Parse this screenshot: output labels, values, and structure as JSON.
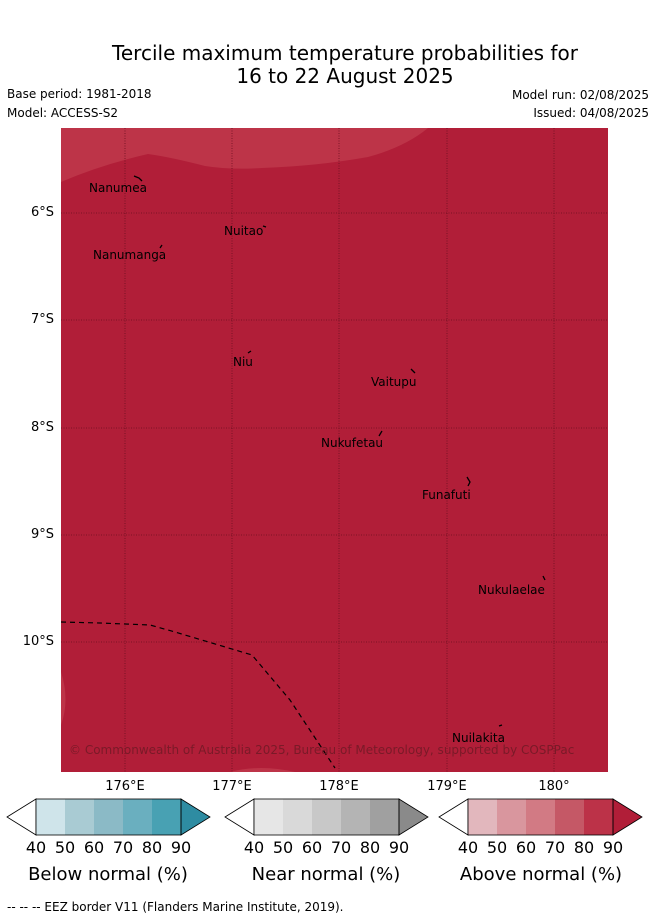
{
  "title_line1": "Tercile maximum temperature probabilities for",
  "title_line2": "16 to 22 August 2025",
  "base_period": "Base period: 1981-2018",
  "model": "Model: ACCESS-S2",
  "model_run": "Model run: 02/08/2025",
  "issued": "Issued: 04/08/2025",
  "map": {
    "fill_color": "#b11e38",
    "light_fill_color": "#bd3448",
    "latitude_labels": [
      "6°S",
      "7°S",
      "8°S",
      "9°S",
      "10°S"
    ],
    "longitude_labels": [
      "176°E",
      "177°E",
      "178°E",
      "179°E",
      "180°"
    ],
    "places": [
      "Nanumea",
      "Nuitao",
      "Nanumanga",
      "Niu",
      "Vaitupu",
      "Nukufetau",
      "Funafuti",
      "Nukulaelae",
      "Nuilakita"
    ],
    "copyright": "© Commonwealth of Australia 2025, Bureau of Meteorology, supported by COSPPac"
  },
  "colorbars": [
    {
      "title": "Below normal (%)",
      "ticks": [
        "40",
        "50",
        "60",
        "70",
        "80",
        "90"
      ],
      "colors": [
        "#cfe4ea",
        "#a9cbd3",
        "#8bbac6",
        "#6aafbf",
        "#48a1b3",
        "#2e8ca2"
      ]
    },
    {
      "title": "Near normal (%)",
      "ticks": [
        "40",
        "50",
        "60",
        "70",
        "80",
        "90"
      ],
      "colors": [
        "#e6e6e6",
        "#d9d9d9",
        "#c8c8c8",
        "#b4b4b4",
        "#a0a0a0",
        "#8a8a8a"
      ]
    },
    {
      "title": "Above normal (%)",
      "ticks": [
        "40",
        "50",
        "60",
        "70",
        "80",
        "90"
      ],
      "colors": [
        "#e2b7bd",
        "#d9969e",
        "#d27a84",
        "#c55866",
        "#bc3248",
        "#b11e38"
      ]
    }
  ],
  "footer": "--  --  -- EEZ border V11 (Flanders Marine Institute, 2019)."
}
